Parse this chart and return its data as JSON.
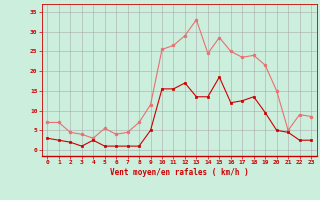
{
  "x": [
    0,
    1,
    2,
    3,
    4,
    5,
    6,
    7,
    8,
    9,
    10,
    11,
    12,
    13,
    14,
    15,
    16,
    17,
    18,
    19,
    20,
    21,
    22,
    23
  ],
  "y_moyen": [
    3,
    2.5,
    2,
    1,
    2.5,
    1,
    1,
    1,
    1,
    5,
    15.5,
    15.5,
    17,
    13.5,
    13.5,
    18.5,
    12,
    12.5,
    13.5,
    9.5,
    5,
    4.5,
    2.5,
    2.5
  ],
  "y_rafales": [
    7,
    7,
    4.5,
    4,
    3,
    5.5,
    4,
    4.5,
    7,
    11.5,
    25.5,
    26.5,
    29,
    33,
    24.5,
    28.5,
    25,
    23.5,
    24,
    21.5,
    15,
    5,
    9,
    8.5
  ],
  "color_moyen": "#cc0000",
  "color_rafales": "#e87070",
  "bg_color": "#cceedd",
  "grid_color": "#aaaaaa",
  "xlabel": "Vent moyen/en rafales ( km/h )",
  "xlabel_color": "#cc0000",
  "tick_color": "#cc0000",
  "ylim": [
    -1.5,
    37
  ],
  "xlim": [
    -0.5,
    23.5
  ],
  "yticks": [
    0,
    5,
    10,
    15,
    20,
    25,
    30,
    35
  ],
  "xticks": [
    0,
    1,
    2,
    3,
    4,
    5,
    6,
    7,
    8,
    9,
    10,
    11,
    12,
    13,
    14,
    15,
    16,
    17,
    18,
    19,
    20,
    21,
    22,
    23
  ]
}
